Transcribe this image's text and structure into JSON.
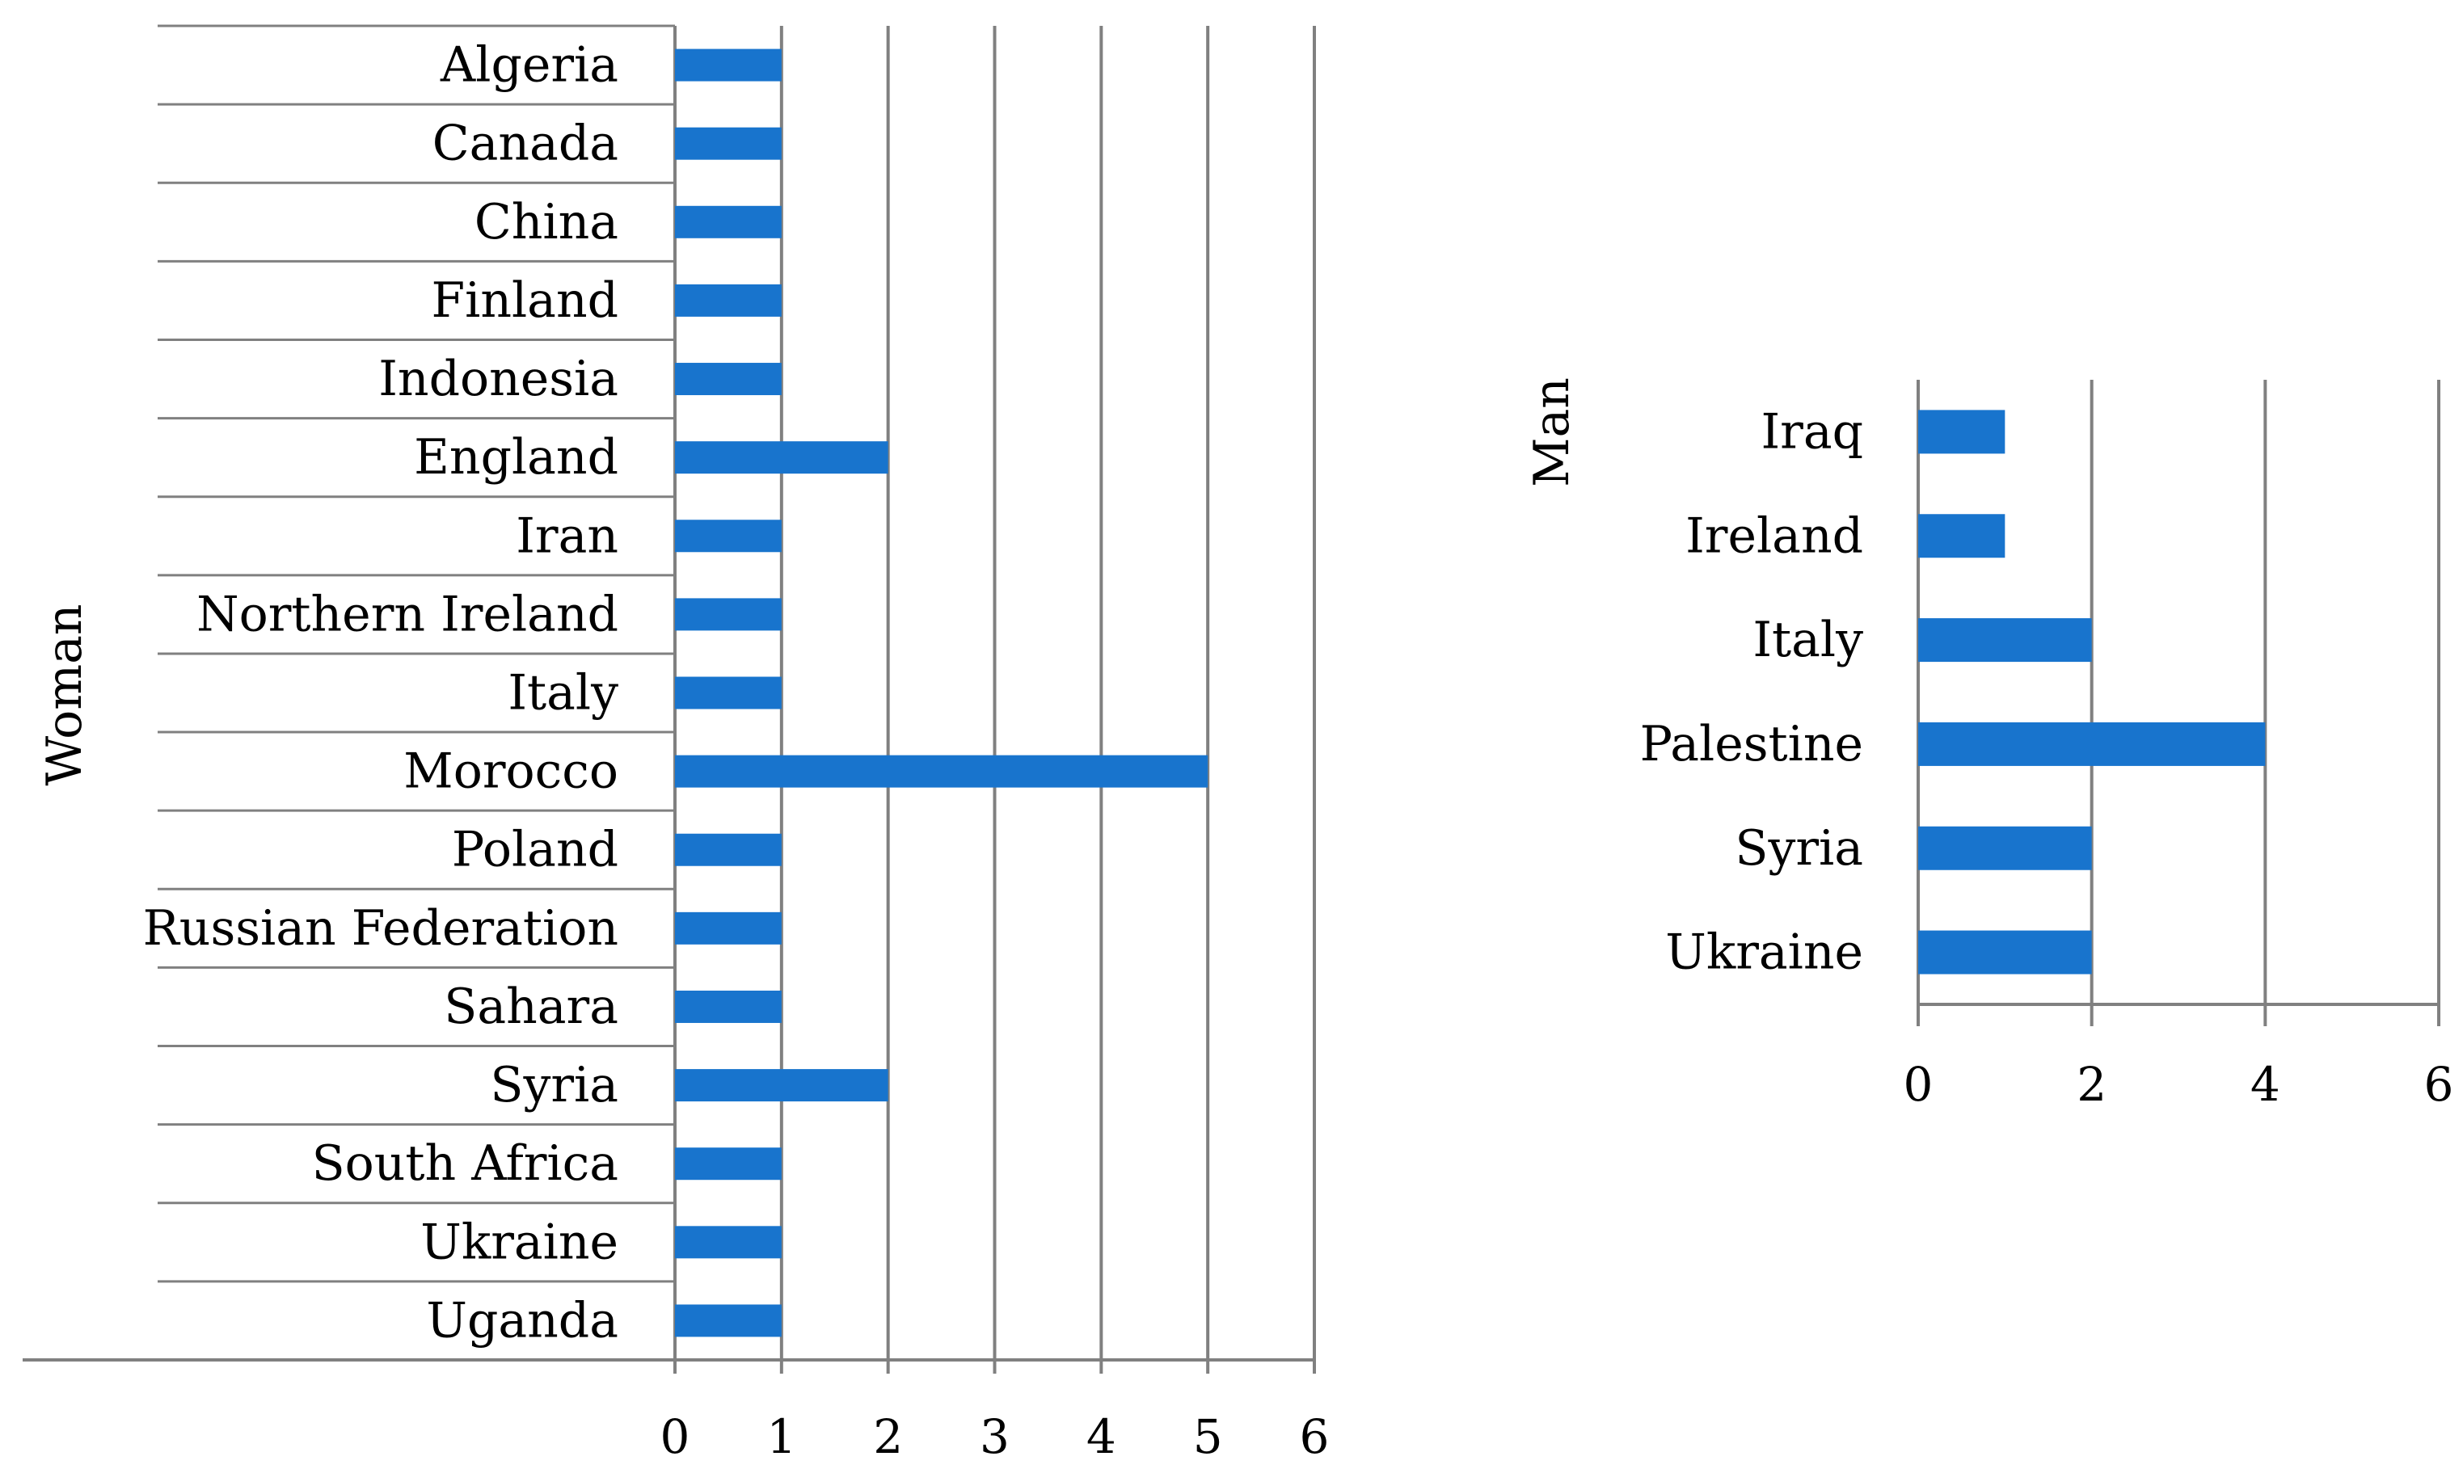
{
  "colors": {
    "bar": "#1874CD",
    "grid": "#808080"
  },
  "chart_data": [
    {
      "type": "bar",
      "orientation": "horizontal",
      "group_label": "Woman",
      "categories": [
        "Algeria",
        "Canada",
        "China",
        "Finland",
        "Indonesia",
        "England",
        "Iran",
        "Northern Ireland",
        "Italy",
        "Morocco",
        "Poland",
        "Russian Federation",
        "Sahara",
        "Syria",
        "South Africa",
        "Ukraine",
        "Uganda"
      ],
      "values": [
        1,
        1,
        1,
        1,
        1,
        2,
        1,
        1,
        1,
        5,
        1,
        1,
        1,
        2,
        1,
        1,
        1
      ],
      "xlim": [
        0,
        6
      ],
      "xticks": [
        0,
        1,
        2,
        3,
        4,
        5,
        6
      ],
      "grid": true,
      "legend": "none"
    },
    {
      "type": "bar",
      "orientation": "horizontal",
      "group_label": "Man",
      "categories": [
        "Iraq",
        "Ireland",
        "Italy",
        "Palestine",
        "Syria",
        "Ukraine"
      ],
      "values": [
        1,
        1,
        2,
        4,
        2,
        2
      ],
      "xlim": [
        0,
        6
      ],
      "xticks": [
        0,
        2,
        4,
        6
      ],
      "grid": true,
      "legend": "none"
    }
  ]
}
